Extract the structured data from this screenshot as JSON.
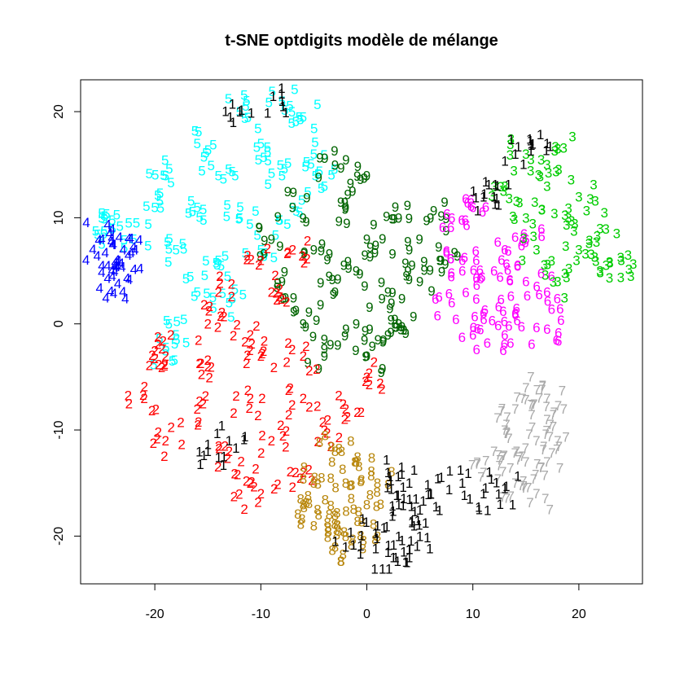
{
  "chart_data": {
    "type": "scatter",
    "title": "t-SNE optdigits modèle de mélange",
    "xlabel": "",
    "ylabel": "",
    "xlim": [
      -27,
      26
    ],
    "ylim": [
      -24.5,
      23
    ],
    "xticks": [
      -20,
      -10,
      0,
      10,
      20
    ],
    "yticks": [
      -20,
      -10,
      0,
      10,
      20
    ],
    "xtick_labels": [
      "-20",
      "-10",
      "0",
      "10",
      "20"
    ],
    "ytick_labels": [
      "-20",
      "-10",
      "0",
      "10",
      "20"
    ],
    "grid": false,
    "legend": "none",
    "marker_style": "digit glyphs",
    "clusters": [
      {
        "color": "#00ffff",
        "label": "5",
        "center": [
          -14,
          11
        ],
        "extent": [
          9,
          8
        ],
        "points": [
          [
            -12,
            20
          ],
          [
            -8,
            21
          ],
          [
            -6,
            19.5
          ],
          [
            -16,
            17
          ],
          [
            -10,
            17
          ],
          [
            -5,
            16
          ],
          [
            -19,
            14
          ],
          [
            -14,
            14
          ],
          [
            -8,
            14
          ],
          [
            -4,
            13
          ],
          [
            -20,
            11
          ],
          [
            -16,
            11
          ],
          [
            -12,
            10
          ],
          [
            -7,
            11
          ],
          [
            -22,
            8
          ],
          [
            -18,
            7
          ],
          [
            -14,
            6
          ],
          [
            -10,
            7
          ],
          [
            -16,
            3
          ],
          [
            -13,
            2
          ],
          [
            -18,
            -1
          ],
          [
            -19,
            -2.5
          ],
          [
            -24,
            9
          ],
          [
            -25,
            10
          ]
        ]
      },
      {
        "color": "#0000ff",
        "label": "4",
        "center": [
          -24.5,
          6
        ],
        "extent": [
          1.5,
          2.5
        ],
        "points": [
          [
            -25,
            8
          ],
          [
            -24,
            7.5
          ],
          [
            -23,
            7
          ],
          [
            -25,
            5.5
          ],
          [
            -24,
            4.5
          ],
          [
            -23.5,
            3.8
          ],
          [
            -22.5,
            6.5
          ]
        ]
      },
      {
        "color": "#006400",
        "label": "9",
        "center": [
          0,
          4
        ],
        "extent": [
          8,
          9
        ],
        "points": [
          [
            -3,
            15
          ],
          [
            0,
            14
          ],
          [
            -7,
            11
          ],
          [
            -2,
            11
          ],
          [
            3,
            10
          ],
          [
            6,
            10
          ],
          [
            -9,
            8
          ],
          [
            -5,
            7
          ],
          [
            0,
            8
          ],
          [
            4,
            7
          ],
          [
            -8,
            4
          ],
          [
            -3,
            3
          ],
          [
            2,
            3
          ],
          [
            5,
            4
          ],
          [
            -6,
            0
          ],
          [
            -1,
            0
          ],
          [
            3,
            0
          ],
          [
            -4,
            -3
          ],
          [
            0,
            -3
          ],
          [
            2,
            -1
          ],
          [
            7,
            6
          ],
          [
            -1,
            5
          ]
        ]
      },
      {
        "color": "#ff0000",
        "label": "2",
        "center": [
          -10,
          -6
        ],
        "extent": [
          9,
          10
        ],
        "points": [
          [
            -10,
            6
          ],
          [
            -7,
            7
          ],
          [
            -14,
            3
          ],
          [
            -9,
            3
          ],
          [
            -15,
            0
          ],
          [
            -11,
            -1
          ],
          [
            -19,
            -3
          ],
          [
            -15,
            -4
          ],
          [
            -10,
            -3
          ],
          [
            -6,
            -3
          ],
          [
            -21,
            -7
          ],
          [
            -16,
            -8
          ],
          [
            -11,
            -7
          ],
          [
            -6,
            -7
          ],
          [
            -2,
            -8
          ],
          [
            -19,
            -11
          ],
          [
            -13,
            -12
          ],
          [
            -9,
            -11
          ],
          [
            -4,
            -10
          ],
          [
            -11,
            -15
          ],
          [
            -6,
            -14
          ],
          [
            -10,
            -16
          ],
          [
            -20,
            -2.5
          ],
          [
            0,
            -5
          ]
        ]
      },
      {
        "color": "#b8860b",
        "label": "8",
        "center": [
          -2,
          -17
        ],
        "extent": [
          5,
          5
        ],
        "points": [
          [
            -3,
            -12
          ],
          [
            -1,
            -13
          ],
          [
            -5,
            -15
          ],
          [
            -2,
            -15
          ],
          [
            1,
            -15
          ],
          [
            -6,
            -17
          ],
          [
            -3,
            -18
          ],
          [
            0,
            -17
          ],
          [
            -5,
            -19
          ],
          [
            -2,
            -20
          ],
          [
            1,
            -20
          ],
          [
            -3,
            -21
          ]
        ]
      },
      {
        "color": "#ff00ff",
        "label": "6",
        "center": [
          13,
          3
        ],
        "extent": [
          6,
          5
        ],
        "points": [
          [
            8,
            10
          ],
          [
            10,
            11
          ],
          [
            13,
            7
          ],
          [
            15,
            8
          ],
          [
            9,
            5
          ],
          [
            12,
            5
          ],
          [
            15,
            4
          ],
          [
            8,
            2
          ],
          [
            11,
            1
          ],
          [
            14,
            1
          ],
          [
            17,
            3
          ],
          [
            10,
            -1
          ],
          [
            13,
            -1
          ],
          [
            17,
            -0.5
          ],
          [
            9,
            6
          ]
        ]
      },
      {
        "color": "#00cc00",
        "label": "3",
        "center": [
          18,
          10
        ],
        "extent": [
          6,
          6
        ],
        "points": [
          [
            15,
            16
          ],
          [
            18,
            16.5
          ],
          [
            13,
            13
          ],
          [
            17,
            13
          ],
          [
            20,
            12
          ],
          [
            15,
            10
          ],
          [
            19,
            10
          ],
          [
            22,
            9
          ],
          [
            16,
            7
          ],
          [
            20,
            7
          ],
          [
            24,
            6
          ],
          [
            18,
            4
          ],
          [
            22,
            5
          ]
        ]
      },
      {
        "color": "#a9a9a9",
        "label": "7",
        "center": [
          15,
          -11
        ],
        "extent": [
          4,
          5
        ],
        "points": [
          [
            15,
            -6
          ],
          [
            17,
            -7
          ],
          [
            14,
            -8
          ],
          [
            17,
            -9
          ],
          [
            13,
            -10
          ],
          [
            16,
            -11
          ],
          [
            18,
            -11
          ],
          [
            12,
            -12
          ],
          [
            15,
            -13
          ],
          [
            17,
            -13
          ],
          [
            11,
            -14
          ],
          [
            14,
            -15
          ],
          [
            16,
            -16
          ]
        ]
      },
      {
        "color": "#000000",
        "label": "1",
        "center": [
          4,
          -17
        ],
        "extent": [
          4,
          5
        ],
        "points": [
          [
            2,
            -14
          ],
          [
            4,
            -15
          ],
          [
            6,
            -16
          ],
          [
            3,
            -17
          ],
          [
            5,
            -17.5
          ],
          [
            1,
            -19
          ],
          [
            3,
            -20
          ],
          [
            5,
            -20
          ],
          [
            2,
            -21.5
          ],
          [
            4,
            -22
          ],
          [
            -2,
            -21
          ],
          [
            -15,
            -12
          ],
          [
            -13,
            -11
          ],
          [
            9,
            -15
          ],
          [
            11,
            -16
          ],
          [
            13,
            -15.5
          ],
          [
            -8,
            21
          ],
          [
            -12,
            20
          ],
          [
            17,
            17
          ],
          [
            14,
            16
          ],
          [
            12,
            12
          ],
          [
            11,
            12
          ]
        ]
      }
    ]
  }
}
